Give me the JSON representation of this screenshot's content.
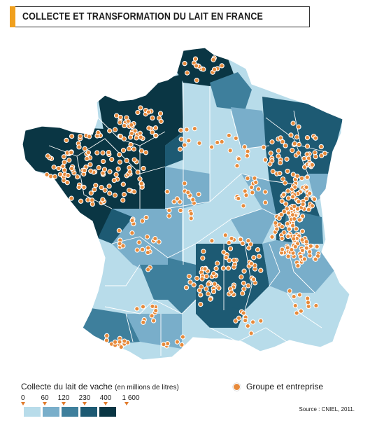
{
  "title": "COLLECTE ET TRANSFORMATION DU LAIT EN FRANCE",
  "legend": {
    "choropleth_title": "Collecte du lait de vache",
    "choropleth_unit": "(en millions de litres)",
    "breaks": [
      "0",
      "60",
      "120",
      "230",
      "400",
      "1 600"
    ],
    "class_colors": [
      "#b8dcea",
      "#79aeca",
      "#3e7f9c",
      "#1d5a73",
      "#0a3644"
    ],
    "point_label": "Groupe et entreprise",
    "point_color": "#e78a3b"
  },
  "source": "Source : CNIEL, 2011.",
  "colors": {
    "accent": "#f0a01e",
    "border": "#ffffff"
  }
}
